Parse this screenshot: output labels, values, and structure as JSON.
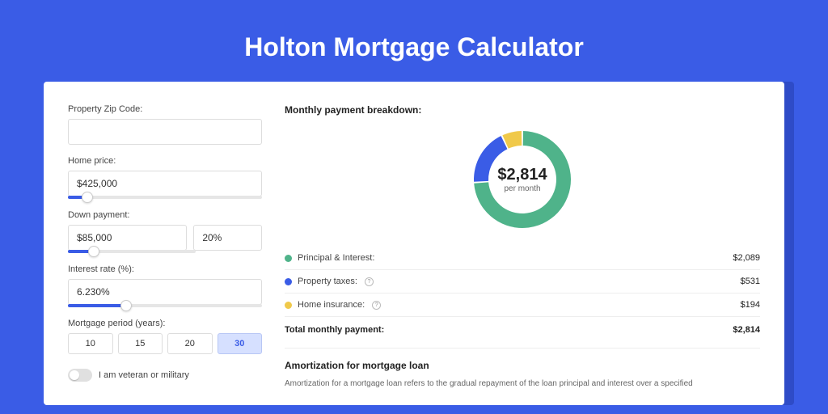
{
  "page_title": "Holton Mortgage Calculator",
  "colors": {
    "page_bg": "#3a5ce6",
    "card_shadow": "#2e4bc7",
    "accent": "#3a5ce6",
    "principal": "#4fb38a",
    "taxes": "#3a5ce6",
    "insurance": "#f0c94a"
  },
  "inputs": {
    "zip_label": "Property Zip Code:",
    "zip_value": "",
    "price_label": "Home price:",
    "price_value": "$425,000",
    "price_slider_pct": 10,
    "down_label": "Down payment:",
    "down_value": "$85,000",
    "down_pct_value": "20%",
    "down_slider_pct": 20,
    "rate_label": "Interest rate (%):",
    "rate_value": "6.230%",
    "rate_slider_pct": 30,
    "period_label": "Mortgage period (years):",
    "periods": [
      "10",
      "15",
      "20",
      "30"
    ],
    "period_active_index": 3,
    "veteran_label": "I am veteran or military",
    "veteran_on": false
  },
  "breakdown": {
    "title": "Monthly payment breakdown:",
    "donut": {
      "center_value": "$2,814",
      "center_sub": "per month",
      "segments": [
        {
          "color": "#4fb38a",
          "pct": 74
        },
        {
          "color": "#3a5ce6",
          "pct": 19
        },
        {
          "color": "#f0c94a",
          "pct": 7
        }
      ],
      "radius_outer": 60,
      "radius_inner": 42
    },
    "rows": [
      {
        "dot": "#4fb38a",
        "label": "Principal & Interest:",
        "info": false,
        "amount": "$2,089"
      },
      {
        "dot": "#3a5ce6",
        "label": "Property taxes:",
        "info": true,
        "amount": "$531"
      },
      {
        "dot": "#f0c94a",
        "label": "Home insurance:",
        "info": true,
        "amount": "$194"
      }
    ],
    "total_label": "Total monthly payment:",
    "total_amount": "$2,814"
  },
  "amortization": {
    "title": "Amortization for mortgage loan",
    "text": "Amortization for a mortgage loan refers to the gradual repayment of the loan principal and interest over a specified"
  }
}
